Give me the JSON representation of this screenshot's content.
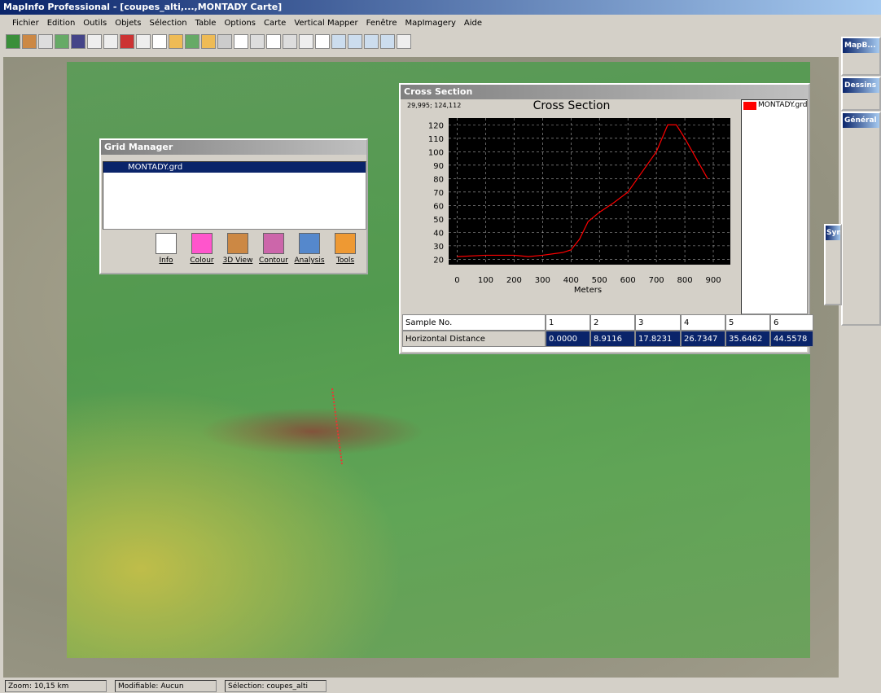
{
  "window": {
    "title": "MapInfo Professional - [coupes_alti,...,MONTADY Carte]"
  },
  "menu": [
    "Fichier",
    "Edition",
    "Outils",
    "Objets",
    "Sélection",
    "Table",
    "Options",
    "Carte",
    "Vertical Mapper",
    "Fenêtre",
    "MapImagery",
    "Aide"
  ],
  "grid_manager": {
    "title": "Grid Manager",
    "items": [
      "MONTADY.grd"
    ],
    "buttons": [
      "Info",
      "Colour",
      "3D View",
      "Contour",
      "Analysis",
      "Tools"
    ]
  },
  "cross_section": {
    "window_title": "Cross Section",
    "coords": "29,995; 124,112",
    "chart": {
      "type": "line",
      "title": "Cross Section",
      "x_label": "Meters",
      "x": [
        0,
        100,
        200,
        250,
        300,
        370,
        400,
        430,
        460,
        500,
        550,
        600,
        650,
        700,
        740,
        770,
        800,
        840,
        880
      ],
      "series": [
        {
          "name": "MONTADY.grd",
          "color": "#ff0000",
          "values": [
            22,
            23,
            23,
            22,
            23,
            25,
            27,
            35,
            48,
            55,
            62,
            70,
            85,
            100,
            120,
            120,
            110,
            95,
            80
          ]
        }
      ],
      "xlim": [
        -30,
        960
      ],
      "ylim": [
        16,
        125
      ],
      "xticks": [
        0,
        100,
        200,
        300,
        400,
        500,
        600,
        700,
        800,
        900
      ],
      "yticks": [
        20,
        30,
        40,
        50,
        60,
        70,
        80,
        90,
        100,
        110,
        120
      ],
      "grid": true
    },
    "table": {
      "header": [
        "Sample No.",
        "1",
        "2",
        "3",
        "4",
        "5",
        "6"
      ],
      "rows": [
        [
          "Horizontal Distance",
          "0.0000",
          "8.9116",
          "17.8231",
          "26.7347",
          "35.6462",
          "44.5578"
        ]
      ]
    }
  },
  "palettes": [
    "MapB...",
    "Dessins",
    "Général",
    "Syn"
  ],
  "status": [
    "Zoom: 10,15 km",
    "Modifiable: Aucun",
    "Sélection: coupes_alti"
  ]
}
